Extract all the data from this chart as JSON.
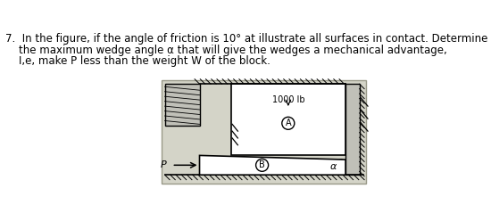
{
  "title_line1": "7.  In the figure, if the angle of friction is 10° at illustrate all surfaces in contact. Determine",
  "title_line2": "    the maximum wedge angle α that will give the wedges a mechanical advantage,",
  "title_line3": "    I,e, make P less than the weight W of the block.",
  "background_color": "#ffffff",
  "diagram_bg": "#d8d8d0",
  "text_color": "#000000",
  "weight_label": "1000 lb",
  "label_A": "A",
  "label_B": "B",
  "label_alpha": "α",
  "label_P": "P",
  "font_size_title": 8.5
}
